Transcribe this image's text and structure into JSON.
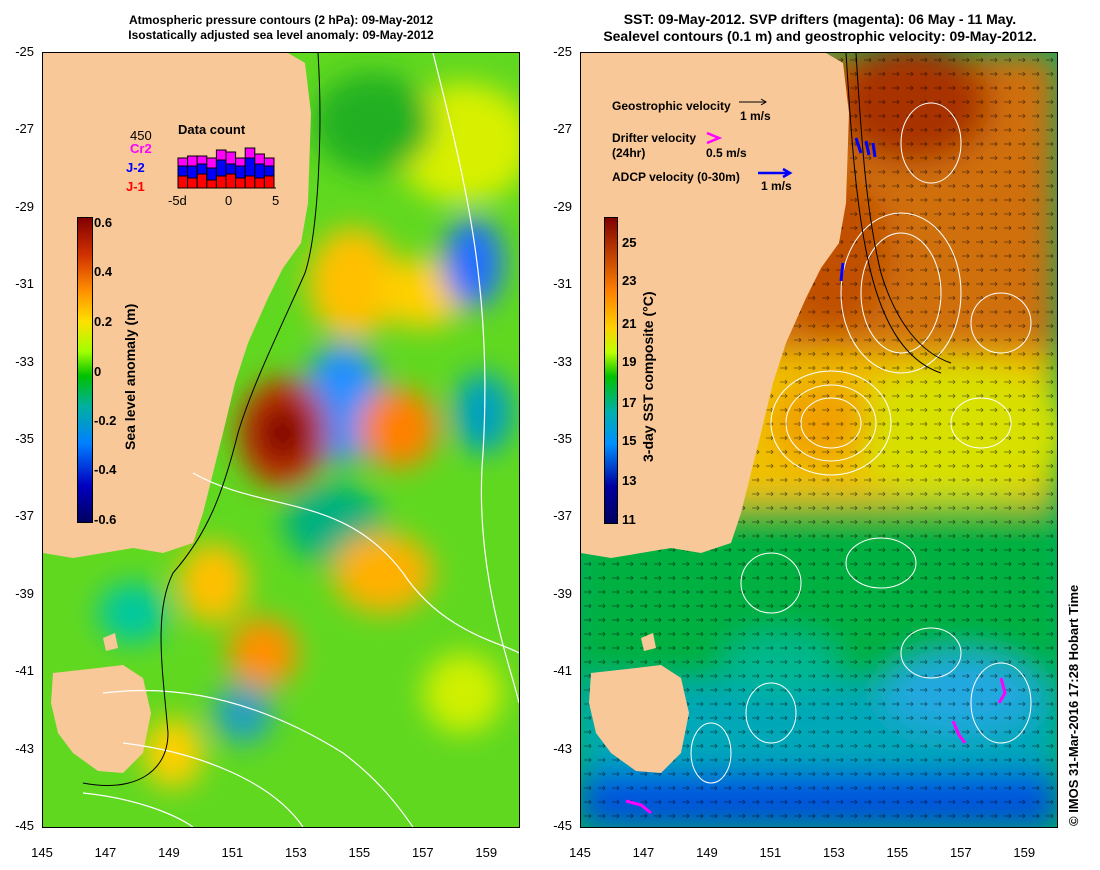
{
  "left": {
    "title_line1": "Atmospheric pressure contours (2 hPa): 09-May-2012",
    "title_line2": "Isostatically adjusted sea level anomaly: 09-May-2012",
    "colorbar_label": "Sea level anomaly (m)",
    "colorbar_ticks": [
      "0.6",
      "0.4",
      "0.2",
      "0",
      "-0.2",
      "-0.4",
      "-0.6"
    ],
    "data_count": {
      "title": "Data count",
      "max_label": "450",
      "series": [
        {
          "name": "Cr2",
          "color": "#ff00ff"
        },
        {
          "name": "J-2",
          "color": "#0000ff"
        },
        {
          "name": "J-1",
          "color": "#ff0000"
        }
      ],
      "x_ticks": [
        "-5d",
        "0",
        "5"
      ]
    }
  },
  "right": {
    "title_line1": "SST: 09-May-2012. SVP drifters (magenta): 06 May - 11 May.",
    "title_line2": "Sealevel contours (0.1 m) and geostrophic velocity: 09-May-2012.",
    "colorbar_label": "3-day SST composite (°C)",
    "colorbar_ticks": [
      "25",
      "23",
      "21",
      "19",
      "17",
      "15",
      "13",
      "11"
    ],
    "legend": {
      "geo_label": "Geostrophic velocity",
      "geo_scale": "1 m/s",
      "drifter_label_1": "Drifter velocity",
      "drifter_label_2": "(24hr)",
      "drifter_scale": "0.5 m/s",
      "adcp_label": "ADCP velocity (0-30m)",
      "adcp_scale": "1 m/s"
    }
  },
  "axes": {
    "y_ticks": [
      "-25",
      "-27",
      "-29",
      "-31",
      "-33",
      "-35",
      "-37",
      "-39",
      "-41",
      "-43",
      "-45"
    ],
    "x_ticks": [
      "145",
      "147",
      "149",
      "151",
      "153",
      "155",
      "157",
      "159"
    ]
  },
  "copyright": "© IMOS 31-Mar-2016 17:28 Hobart Time",
  "colors": {
    "land": "#f8c898",
    "sla_scale": [
      "#800000",
      "#d03000",
      "#ff9000",
      "#ffe000",
      "#a0ff00",
      "#00c000",
      "#00b0a0",
      "#0080ff",
      "#0000c0",
      "#000060"
    ],
    "sst_scale": [
      "#800000",
      "#c04000",
      "#ff8000",
      "#ffd000",
      "#c0ff00",
      "#00c000",
      "#00b0b0",
      "#0090ff",
      "#0000a0",
      "#000060"
    ]
  }
}
